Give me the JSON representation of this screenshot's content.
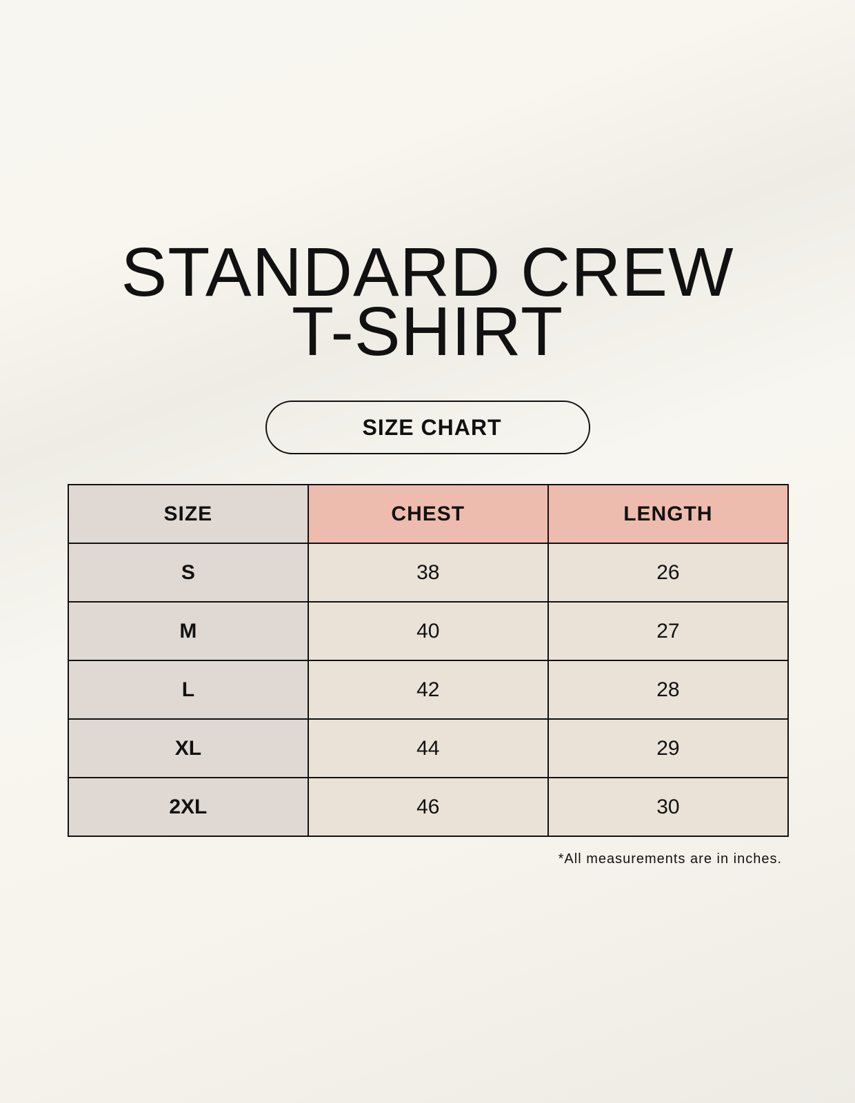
{
  "title": {
    "line1": "STANDARD CREW",
    "line2": "T-SHIRT"
  },
  "subtitle": "SIZE CHART",
  "table": {
    "headers": [
      "SIZE",
      "CHEST",
      "LENGTH"
    ],
    "rows": [
      [
        "S",
        "38",
        "26"
      ],
      [
        "M",
        "40",
        "27"
      ],
      [
        "L",
        "42",
        "28"
      ],
      [
        "XL",
        "44",
        "29"
      ],
      [
        "2XL",
        "46",
        "30"
      ]
    ]
  },
  "footnote": "*All measurements are in inches.",
  "colors": {
    "size_column": "#e0d9d3",
    "header_accent": "#eebcae",
    "value_cells": "#eae2d7"
  }
}
